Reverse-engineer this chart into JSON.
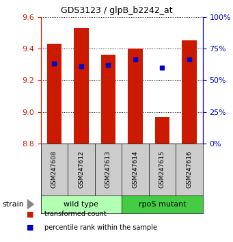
{
  "title": "GDS3123 / glpB_b2242_at",
  "samples": [
    "GSM247608",
    "GSM247612",
    "GSM247613",
    "GSM247614",
    "GSM247615",
    "GSM247616"
  ],
  "bar_bottoms": [
    8.8,
    8.8,
    8.8,
    8.8,
    8.8,
    8.8
  ],
  "bar_tops": [
    9.43,
    9.53,
    9.36,
    9.4,
    8.97,
    9.45
  ],
  "blue_dot_y": [
    9.305,
    9.29,
    9.295,
    9.33,
    9.28,
    9.33
  ],
  "ylim": [
    8.8,
    9.6
  ],
  "yticks_left": [
    8.8,
    9.0,
    9.2,
    9.4,
    9.6
  ],
  "yticks_right": [
    0,
    25,
    50,
    75,
    100
  ],
  "bar_color": "#cc1a00",
  "dot_color": "#0000cc",
  "group1_label": "wild type",
  "group2_label": "rpoS mutant",
  "group1_color": "#b3ffb3",
  "group2_color": "#44cc44",
  "left_tick_color": "#cc1a00",
  "right_tick_color": "#0000cc",
  "legend_bar_label": "transformed count",
  "legend_dot_label": "percentile rank within the sample",
  "bar_width": 0.55
}
